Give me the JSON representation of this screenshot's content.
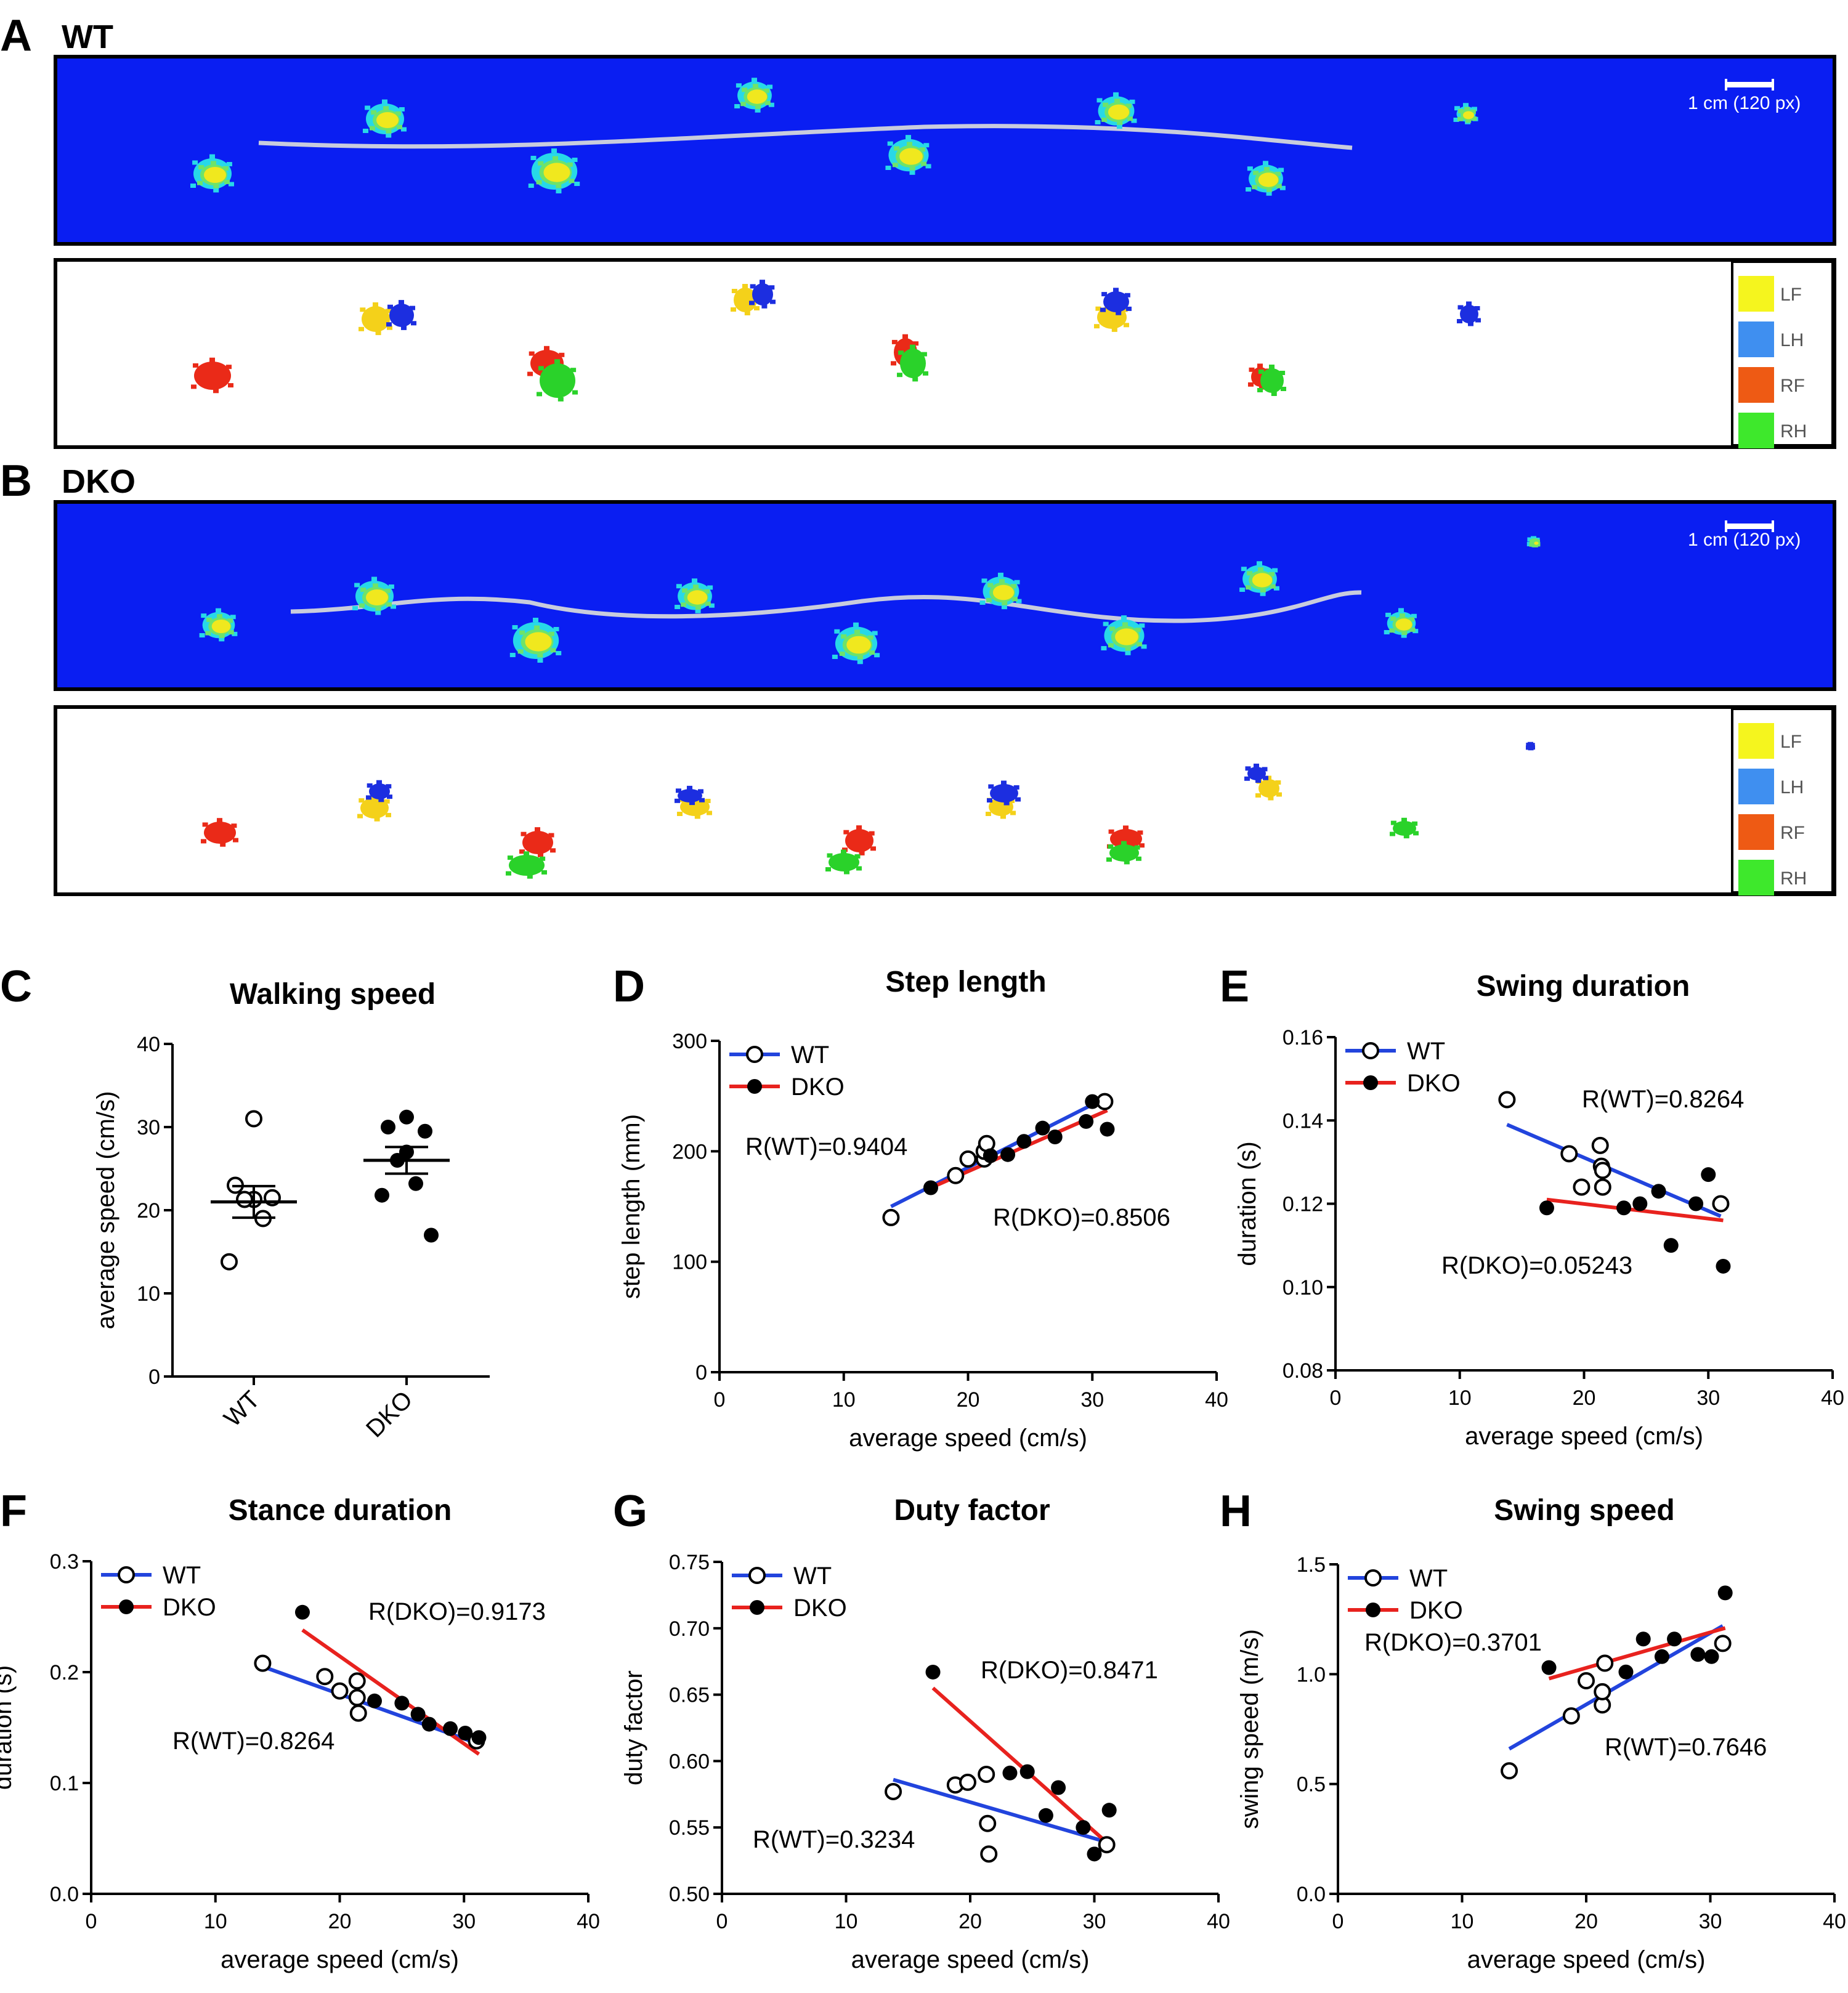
{
  "panels": {
    "A": {
      "letter": "A",
      "title": "WT"
    },
    "B": {
      "letter": "B",
      "title": "DKO"
    }
  },
  "scale_label": "1 cm (120 px)",
  "paw_key": [
    {
      "code": "LF",
      "color": "#f5f51e"
    },
    {
      "code": "LH",
      "color": "#3f8ff0"
    },
    {
      "code": "RF",
      "color": "#ee5a14"
    },
    {
      "code": "RH",
      "color": "#3ee82c"
    }
  ],
  "colors": {
    "track_bg": "#0a1ef2",
    "center_line": "#c8ccdd",
    "wt_line": "#2244dd",
    "dko_line": "#e8221e",
    "print_cyan": "#27d8e8",
    "print_green": "#6ee36a",
    "print_yellow": "#f0e81e",
    "lh_blue": "#1c2ee0",
    "lf_yellow": "#f4d11a",
    "rf_red": "#ea2a18",
    "rh_green": "#2ad22a"
  },
  "legend": {
    "wt": "WT",
    "dko": "DKO"
  },
  "chart_data": [
    {
      "id": "C",
      "letter": "C",
      "type": "scatter",
      "title": "Walking speed",
      "xlabel": "",
      "ylabel": "average speed (cm/s)",
      "ylim": [
        0,
        40
      ],
      "yticks": [
        "0",
        "10",
        "20",
        "30",
        "40"
      ],
      "categories": [
        "WT",
        "DKO"
      ],
      "series": [
        {
          "name": "WT",
          "values": [
            31.0,
            23.0,
            21.5,
            21.3,
            21.3,
            19.0,
            13.8
          ],
          "mean": 21.0,
          "sem": 1.9
        },
        {
          "name": "DKO",
          "values": [
            31.2,
            30.0,
            29.5,
            27.0,
            26.0,
            23.2,
            21.8,
            17.0
          ],
          "mean": 26.0,
          "sem": 1.6
        }
      ]
    },
    {
      "id": "D",
      "letter": "D",
      "type": "scatter",
      "title": "Step length",
      "xlabel": "average speed (cm/s)",
      "ylabel": "step length (mm)",
      "xlim": [
        0,
        40
      ],
      "ylim": [
        0,
        300
      ],
      "xticks": [
        "0",
        "10",
        "20",
        "30",
        "40"
      ],
      "yticks": [
        "0",
        "100",
        "200",
        "300"
      ],
      "series": [
        {
          "name": "WT",
          "x": [
            13.8,
            19.0,
            20.0,
            21.3,
            21.3,
            21.5,
            31.0
          ],
          "y": [
            140,
            178,
            193,
            193,
            200,
            207,
            245
          ],
          "fit": [
            [
              13.8,
              150
            ],
            [
              31.0,
              248
            ]
          ],
          "r_label": "R(WT)=0.9404"
        },
        {
          "name": "DKO",
          "x": [
            17.0,
            21.8,
            23.2,
            24.5,
            26.0,
            27.0,
            29.5,
            30.0,
            31.2
          ],
          "y": [
            167,
            196,
            197,
            209,
            221,
            213,
            227,
            245,
            220
          ],
          "fit": [
            [
              17.0,
              167
            ],
            [
              31.2,
              237
            ]
          ],
          "r_label": "R(DKO)=0.8506"
        }
      ]
    },
    {
      "id": "E",
      "letter": "E",
      "type": "scatter",
      "title": "Swing duration",
      "xlabel": "average speed (cm/s)",
      "ylabel": "duration (s)",
      "xlim": [
        0,
        40
      ],
      "ylim": [
        0.08,
        0.16
      ],
      "xticks": [
        "0",
        "10",
        "20",
        "30",
        "40"
      ],
      "yticks": [
        "0.08",
        "0.10",
        "0.12",
        "0.14",
        "0.16"
      ],
      "series": [
        {
          "name": "WT",
          "x": [
            13.8,
            18.8,
            19.8,
            21.3,
            21.4,
            21.5,
            21.5,
            31.0
          ],
          "y": [
            0.145,
            0.132,
            0.124,
            0.134,
            0.129,
            0.128,
            0.124,
            0.12
          ],
          "fit": [
            [
              13.8,
              0.139
            ],
            [
              31.0,
              0.117
            ]
          ],
          "r_label": "R(WT)=0.8264"
        },
        {
          "name": "DKO",
          "x": [
            17.0,
            23.2,
            24.5,
            26.0,
            27.0,
            29.0,
            30.0,
            31.2
          ],
          "y": [
            0.119,
            0.119,
            0.12,
            0.123,
            0.11,
            0.12,
            0.127,
            0.105
          ],
          "fit": [
            [
              17.0,
              0.121
            ],
            [
              31.2,
              0.116
            ]
          ],
          "r_label": "R(DKO)=0.05243"
        }
      ]
    },
    {
      "id": "F",
      "letter": "F",
      "type": "scatter",
      "title": "Stance duration",
      "xlabel": "average speed (cm/s)",
      "ylabel": "duration (s)",
      "xlim": [
        0,
        40
      ],
      "ylim": [
        0.0,
        0.3
      ],
      "xticks": [
        "0",
        "10",
        "20",
        "30",
        "40"
      ],
      "yticks": [
        "0.0",
        "0.1",
        "0.2",
        "0.3"
      ],
      "series": [
        {
          "name": "WT",
          "x": [
            13.8,
            18.8,
            20.0,
            21.4,
            21.4,
            21.5,
            31.0
          ],
          "y": [
            0.208,
            0.196,
            0.183,
            0.192,
            0.177,
            0.163,
            0.138
          ],
          "fit": [
            [
              13.8,
              0.205
            ],
            [
              31.0,
              0.136
            ]
          ],
          "r_label": "R(WT)=0.8264"
        },
        {
          "name": "DKO",
          "x": [
            17.0,
            22.8,
            25.0,
            26.3,
            27.2,
            28.9,
            30.1,
            31.2
          ],
          "y": [
            0.254,
            0.174,
            0.172,
            0.162,
            0.153,
            0.149,
            0.145,
            0.141
          ],
          "fit": [
            [
              17.0,
              0.238
            ],
            [
              31.2,
              0.126
            ]
          ],
          "r_label": "R(DKO)=0.9173"
        }
      ]
    },
    {
      "id": "G",
      "letter": "G",
      "type": "scatter",
      "title": "Duty factor",
      "xlabel": "average speed (cm/s)",
      "ylabel": "duty factor",
      "xlim": [
        0,
        40
      ],
      "ylim": [
        0.5,
        0.75
      ],
      "xticks": [
        "0",
        "10",
        "20",
        "30",
        "40"
      ],
      "yticks": [
        "0.50",
        "0.55",
        "0.60",
        "0.65",
        "0.70",
        "0.75"
      ],
      "series": [
        {
          "name": "WT",
          "x": [
            13.8,
            18.8,
            19.8,
            21.3,
            21.4,
            21.5,
            31.0
          ],
          "y": [
            0.577,
            0.582,
            0.584,
            0.59,
            0.553,
            0.53,
            0.537
          ],
          "fit": [
            [
              13.8,
              0.586
            ],
            [
              31.0,
              0.539
            ]
          ],
          "r_label": "R(WT)=0.3234"
        },
        {
          "name": "DKO",
          "x": [
            17.0,
            23.2,
            24.6,
            26.1,
            27.1,
            29.1,
            30.0,
            31.2
          ],
          "y": [
            0.667,
            0.591,
            0.592,
            0.559,
            0.58,
            0.55,
            0.53,
            0.563
          ],
          "fit": [
            [
              17.0,
              0.655
            ],
            [
              31.2,
              0.537
            ]
          ],
          "r_label": "R(DKO)=0.8471"
        }
      ]
    },
    {
      "id": "H",
      "letter": "H",
      "type": "scatter",
      "title": "Swing speed",
      "xlabel": "average speed (cm/s)",
      "ylabel": "swing speed (m/s)",
      "xlim": [
        0,
        40
      ],
      "ylim": [
        0.0,
        1.5
      ],
      "xticks": [
        "0",
        "10",
        "20",
        "30",
        "40"
      ],
      "yticks": [
        "0.0",
        "0.5",
        "1.0",
        "1.5"
      ],
      "series": [
        {
          "name": "WT",
          "x": [
            13.8,
            18.8,
            20.0,
            21.3,
            21.3,
            21.5,
            31.0
          ],
          "y": [
            0.56,
            0.81,
            0.97,
            0.86,
            0.92,
            1.05,
            1.14
          ],
          "fit": [
            [
              13.8,
              0.66
            ],
            [
              31.0,
              1.22
            ]
          ],
          "r_label": "R(WT)=0.7646"
        },
        {
          "name": "DKO",
          "x": [
            17.0,
            23.2,
            24.6,
            26.1,
            27.1,
            29.0,
            30.1,
            31.2
          ],
          "y": [
            1.03,
            1.01,
            1.16,
            1.08,
            1.16,
            1.09,
            1.08,
            1.37
          ],
          "fit": [
            [
              17.0,
              0.98
            ],
            [
              31.2,
              1.21
            ]
          ],
          "r_label": "R(DKO)=0.3701"
        }
      ]
    }
  ]
}
